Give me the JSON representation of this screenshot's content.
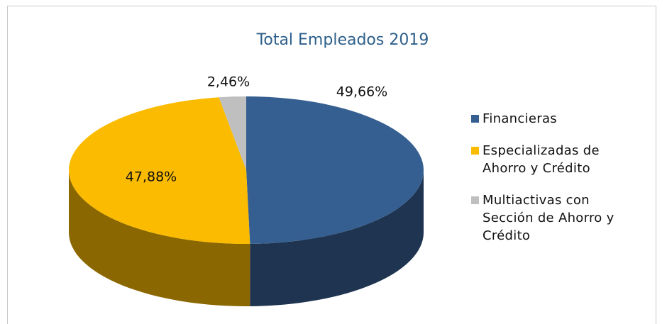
{
  "chart_data": {
    "type": "pie3d",
    "title": "Total Empleados 2019",
    "categories": [
      "Financieras",
      "Especializadas de Ahorro y Crédito",
      "Multiactivas con Sección de Ahorro y Crédito"
    ],
    "values": [
      49.66,
      47.88,
      2.46
    ],
    "value_labels": [
      "49,66%",
      "47,88%",
      "2,46%"
    ],
    "colors": [
      "#365f91",
      "#fbbb00",
      "#bfbfbf"
    ],
    "legend": "right"
  }
}
